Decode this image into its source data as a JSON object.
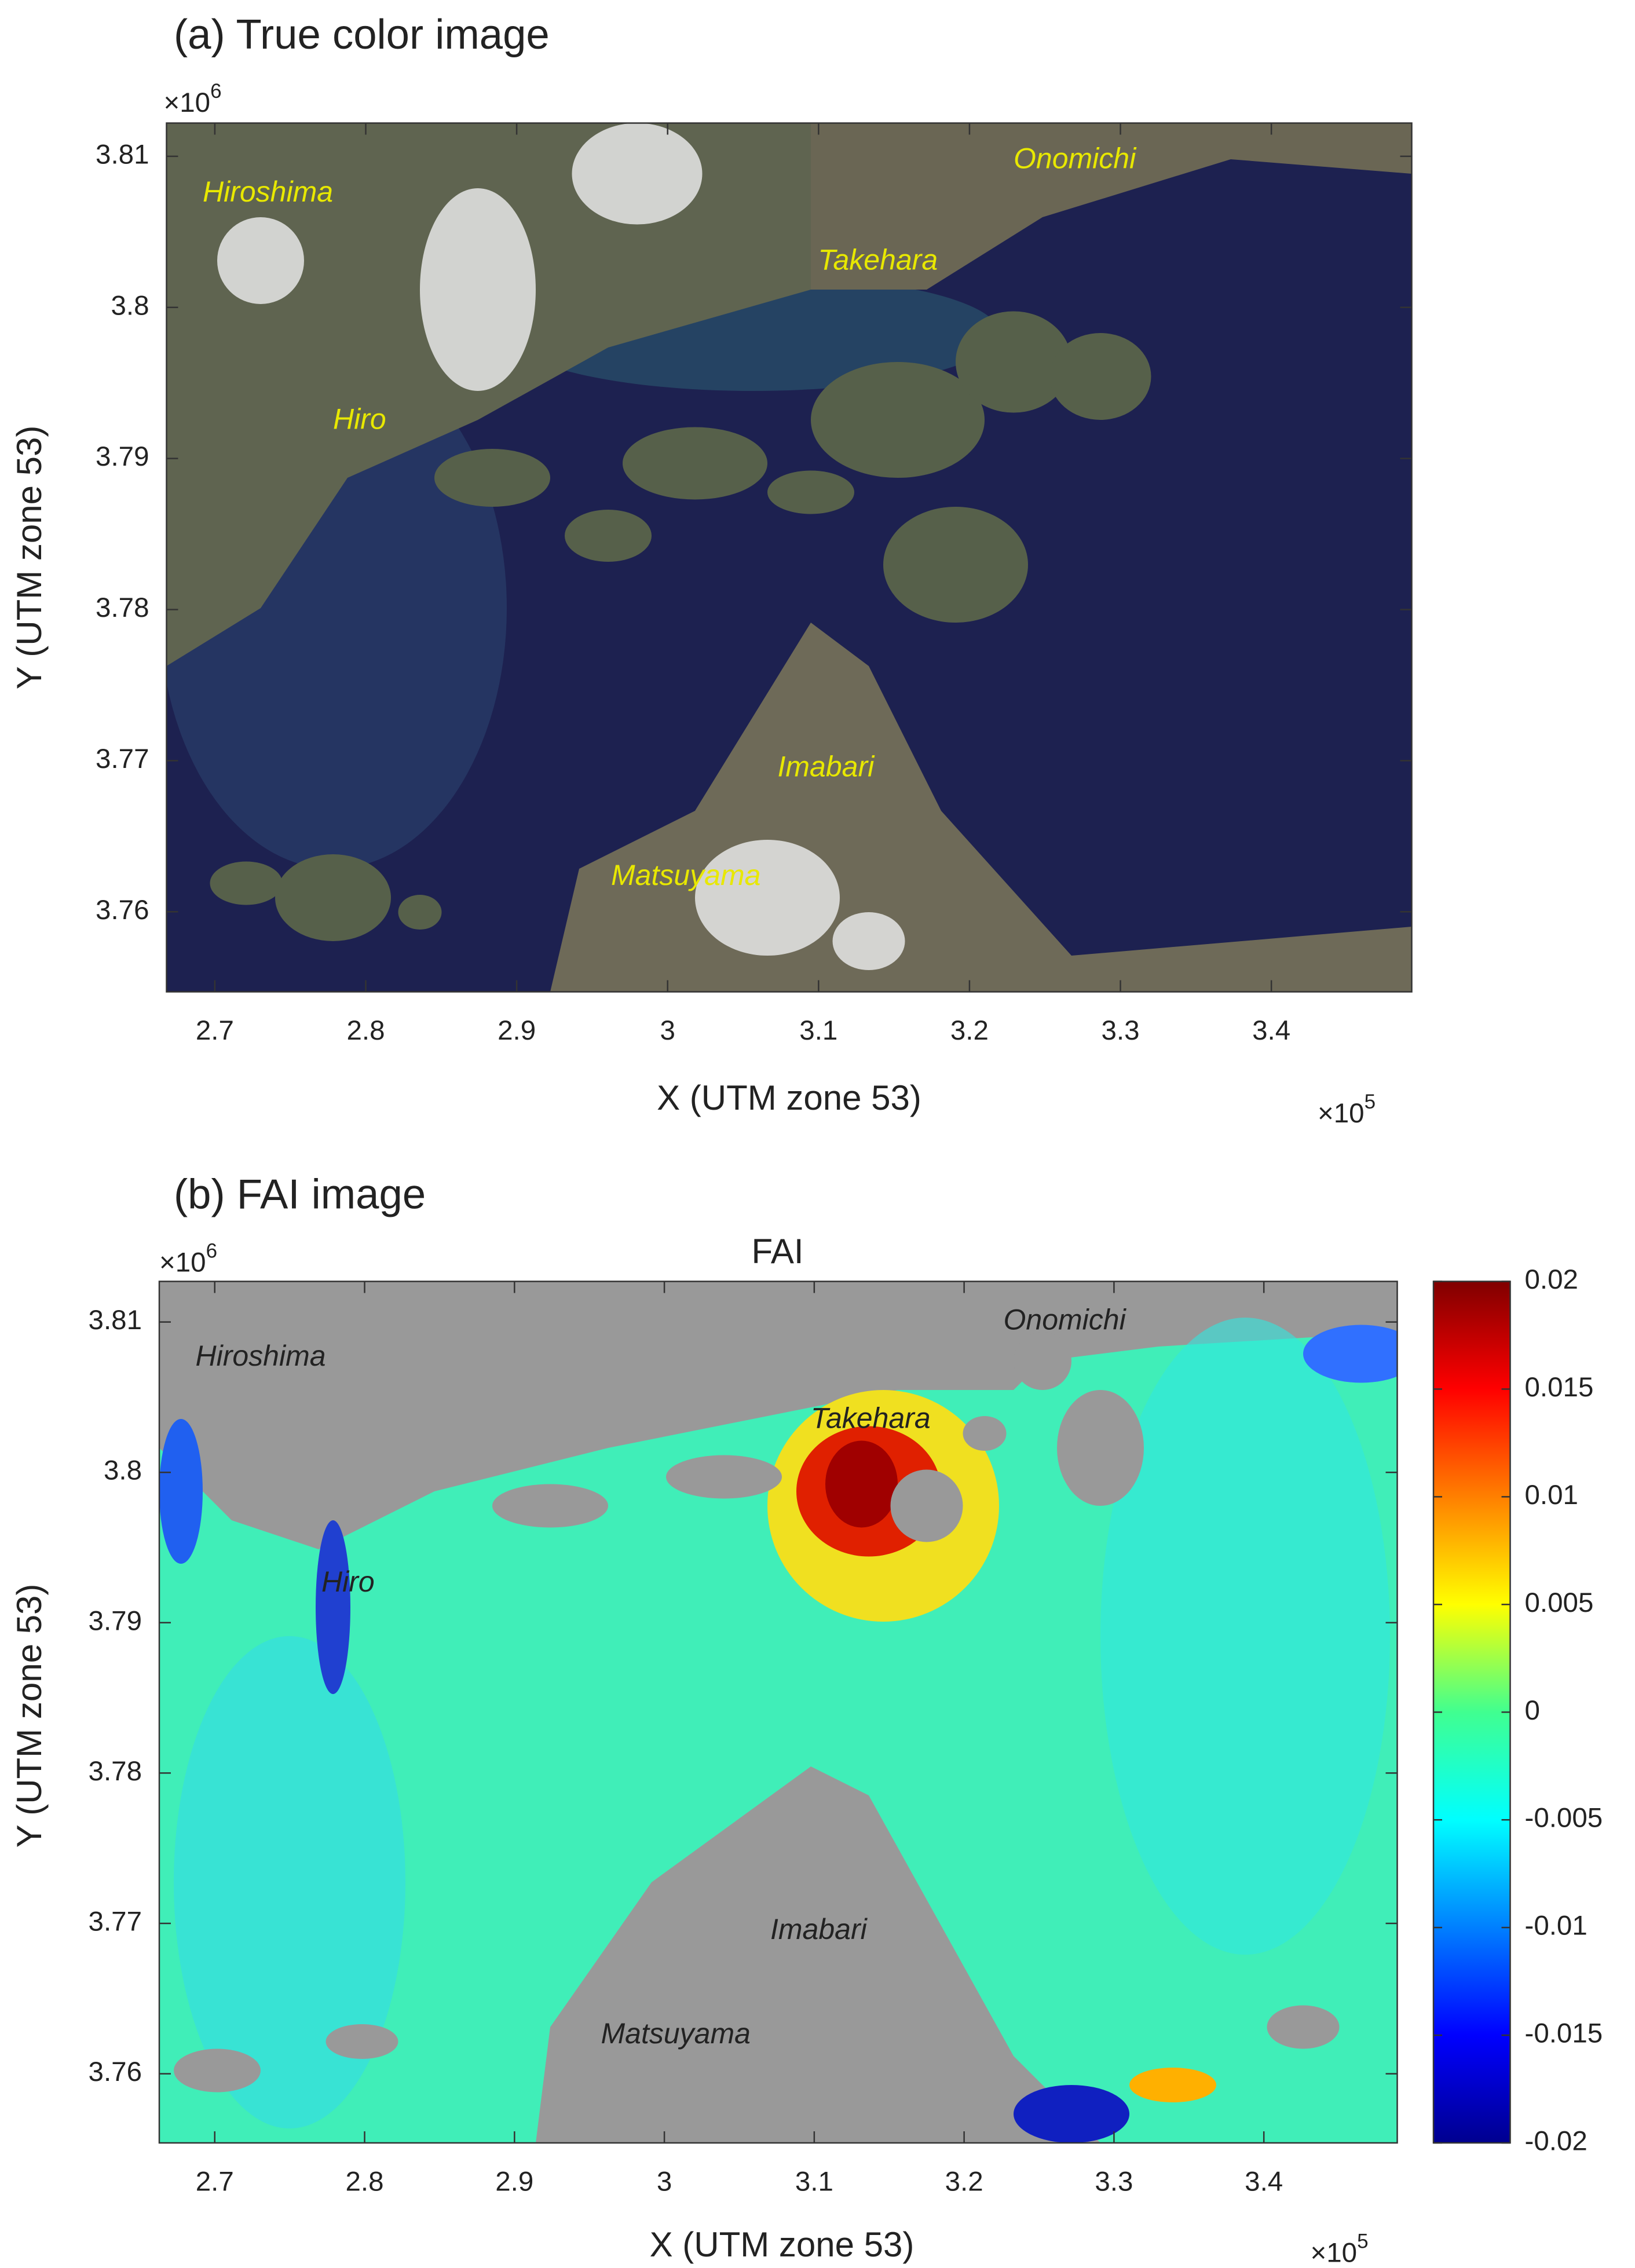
{
  "chart_data": [
    {
      "type": "image",
      "panel_title": "(a) True color image",
      "xlabel": "X (UTM zone 53)",
      "ylabel": "Y (UTM zone 53)",
      "xlim": [
        2.668,
        3.493
      ],
      "ylim": [
        3.7547,
        3.8122
      ],
      "xticks": [
        2.7,
        2.8,
        2.9,
        3,
        3.1,
        3.2,
        3.3,
        3.4
      ],
      "yticks": [
        3.76,
        3.77,
        3.78,
        3.79,
        3.8,
        3.81
      ],
      "x_multiplier": {
        "text": "×10",
        "exponent": 5
      },
      "y_multiplier": {
        "text": "×10",
        "exponent": 6
      },
      "annotation_color": "#e8e800",
      "annotations": [
        "Hiroshima",
        "Takehara",
        "Onomichi",
        "Hiro",
        "Imabari",
        "Matsuyama"
      ]
    },
    {
      "type": "image",
      "panel_title": "(b) FAI image",
      "title": "FAI",
      "xlabel": "X (UTM zone 53)",
      "ylabel": "Y (UTM zone 53)",
      "xlim": [
        2.663,
        3.489
      ],
      "ylim": [
        3.7554,
        3.8127
      ],
      "xticks": [
        2.7,
        2.8,
        2.9,
        3,
        3.1,
        3.2,
        3.3,
        3.4
      ],
      "yticks": [
        3.76,
        3.77,
        3.78,
        3.79,
        3.8,
        3.81
      ],
      "x_multiplier": {
        "text": "×10",
        "exponent": 5
      },
      "y_multiplier": {
        "text": "×10",
        "exponent": 6
      },
      "annotation_color": "#222222",
      "annotations": [
        "Hiroshima",
        "Onomichi",
        "Takehara",
        "Hiro",
        "Imabari",
        "Matsuyama"
      ],
      "colorbar": {
        "colormap": "jet",
        "clim": [
          -0.02,
          0.02
        ],
        "ticks": [
          0.02,
          0.015,
          0.01,
          0.005,
          0,
          -0.005,
          -0.01,
          -0.015,
          -0.02
        ]
      }
    }
  ]
}
